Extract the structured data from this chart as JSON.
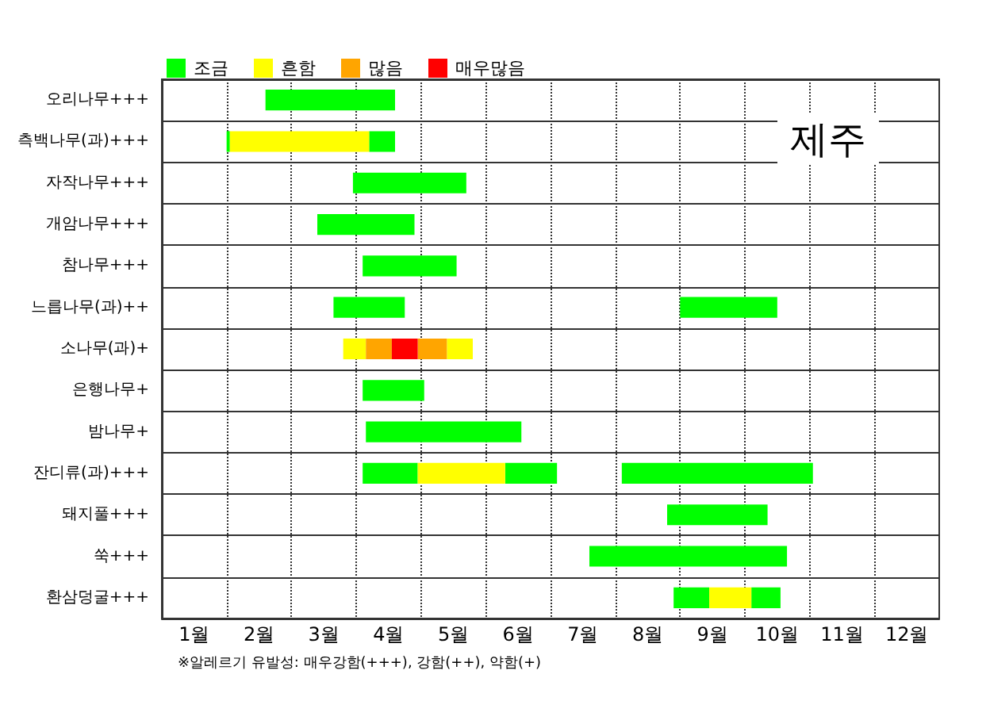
{
  "chart_data": {
    "type": "bar",
    "orientation": "horizontal",
    "title": "제주",
    "categories": [
      "오리나무+++",
      "측백나무(과)+++",
      "자작나무+++",
      "개암나무+++",
      "참나무+++",
      "느릅나무(과)++",
      "소나무(과)+",
      "은행나무+",
      "밤나무+",
      "잔디류(과)+++",
      "돼지풀+++",
      "쑥+++",
      "환삼덩굴+++"
    ],
    "series": [
      {
        "name": "조금",
        "color": "#00ff00",
        "base": [
          1.6,
          1.0,
          2.95,
          2.4,
          3.1,
          2.65,
          null,
          3.1,
          3.15,
          3.1,
          7.8,
          6.6,
          7.9
        ],
        "values": [
          2.0,
          0.05,
          1.75,
          1.5,
          1.45,
          1.1,
          null,
          0.95,
          2.4,
          0.85,
          1.55,
          3.05,
          0.55
        ]
      },
      {
        "color": "#00ff00",
        "base": [
          null,
          3.2,
          null,
          null,
          null,
          8.0,
          null,
          null,
          null,
          5.3,
          null,
          null,
          9.1
        ],
        "values": [
          null,
          0.4,
          null,
          null,
          null,
          1.5,
          null,
          null,
          null,
          0.8,
          null,
          null,
          0.45
        ]
      },
      {
        "color": "#00ff00",
        "base": [
          null,
          null,
          null,
          null,
          null,
          null,
          null,
          null,
          null,
          7.1,
          null,
          null,
          null
        ],
        "values": [
          null,
          null,
          null,
          null,
          null,
          null,
          null,
          null,
          null,
          2.95,
          null,
          null,
          null
        ]
      },
      {
        "name": "흔함",
        "color": "#ffff00",
        "base": [
          null,
          1.05,
          null,
          null,
          null,
          null,
          2.8,
          null,
          null,
          3.95,
          null,
          null,
          8.45
        ],
        "values": [
          null,
          2.15,
          null,
          null,
          null,
          null,
          0.35,
          null,
          null,
          1.35,
          null,
          null,
          0.65
        ]
      },
      {
        "color": "#ffff00",
        "base": [
          null,
          null,
          null,
          null,
          null,
          null,
          4.4,
          null,
          null,
          null,
          null,
          null,
          null
        ],
        "values": [
          null,
          null,
          null,
          null,
          null,
          null,
          0.4,
          null,
          null,
          null,
          null,
          null,
          null
        ]
      },
      {
        "name": "많음",
        "color": "#ffa500",
        "base": [
          null,
          null,
          null,
          null,
          null,
          null,
          3.15,
          null,
          null,
          null,
          null,
          null,
          null
        ],
        "values": [
          null,
          null,
          null,
          null,
          null,
          null,
          0.4,
          null,
          null,
          null,
          null,
          null,
          null
        ]
      },
      {
        "color": "#ffa500",
        "base": [
          null,
          null,
          null,
          null,
          null,
          null,
          3.95,
          null,
          null,
          null,
          null,
          null,
          null
        ],
        "values": [
          null,
          null,
          null,
          null,
          null,
          null,
          0.45,
          null,
          null,
          null,
          null,
          null,
          null
        ]
      },
      {
        "name": "매우많음",
        "color": "#ff0000",
        "base": [
          null,
          null,
          null,
          null,
          null,
          null,
          3.55,
          null,
          null,
          null,
          null,
          null,
          null
        ],
        "values": [
          null,
          null,
          null,
          null,
          null,
          null,
          0.4,
          null,
          null,
          null,
          null,
          null,
          null
        ]
      }
    ],
    "xlim": [
      0,
      12
    ],
    "xticks": [
      {
        "value": 0.5,
        "label": "1월"
      },
      {
        "value": 1,
        "label": null
      },
      {
        "value": 1.5,
        "label": "2월"
      },
      {
        "value": 2,
        "label": null
      },
      {
        "value": 2.5,
        "label": "3월"
      },
      {
        "value": 3,
        "label": null
      },
      {
        "value": 3.5,
        "label": "4월"
      },
      {
        "value": 4,
        "label": null
      },
      {
        "value": 4.5,
        "label": "5월"
      },
      {
        "value": 5,
        "label": null
      },
      {
        "value": 5.5,
        "label": "6월"
      },
      {
        "value": 6,
        "label": null
      },
      {
        "value": 6.5,
        "label": "7월"
      },
      {
        "value": 7,
        "label": null
      },
      {
        "value": 7.5,
        "label": "8월"
      },
      {
        "value": 8,
        "label": null
      },
      {
        "value": 8.5,
        "label": "9월"
      },
      {
        "value": 9,
        "label": null
      },
      {
        "value": 9.5,
        "label": "10월"
      },
      {
        "value": 10,
        "label": null
      },
      {
        "value": 10.5,
        "label": "11월"
      },
      {
        "value": 11,
        "label": null
      },
      {
        "value": 11.5,
        "label": "12월"
      }
    ],
    "grid": "x",
    "legend": "top left",
    "annotations": [
      "※알레르기 유발성: 매우강함(+++), 강함(++), 약함(+)"
    ]
  }
}
